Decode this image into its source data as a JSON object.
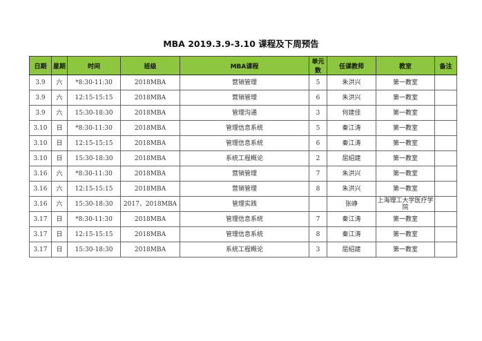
{
  "title": "MBA 2019.3.9-3.10 课程及下周预告",
  "header_color": "#8dc63f",
  "columns": [
    "日期",
    "星期",
    "时间",
    "班级",
    "MBA课程",
    "单元数",
    "任课教师",
    "教室",
    "备注"
  ],
  "rows": [
    [
      "3.9",
      "六",
      "*8:30-11:30",
      "2018MBA",
      "营销管理",
      "5",
      "朱洪兴",
      "第一教室",
      ""
    ],
    [
      "3.9",
      "六",
      "12:15-15:15",
      "2018MBA",
      "营销管理",
      "6",
      "朱洪兴",
      "第一教室",
      ""
    ],
    [
      "3.9",
      "六",
      "15:30-18:30",
      "2018MBA",
      "管理沟通",
      "3",
      "何建佳",
      "第一教室",
      ""
    ],
    [
      "3.10",
      "日",
      "*8:30-11:30",
      "2018MBA",
      "管理信息系统",
      "5",
      "秦江涛",
      "第一教室",
      ""
    ],
    [
      "3.10",
      "日",
      "12:15-15:15",
      "2018MBA",
      "管理信息系统",
      "6",
      "秦江涛",
      "第一教室",
      ""
    ],
    [
      "3.10",
      "日",
      "15:30-18:30",
      "2018MBA",
      "系统工程概论",
      "2",
      "屈绍建",
      "第一教室",
      ""
    ],
    [
      "3.16",
      "六",
      "*8:30-11:30",
      "2018MBA",
      "营销管理",
      "7",
      "朱洪兴",
      "第一教室",
      ""
    ],
    [
      "3.16",
      "六",
      "12:15-15:15",
      "2018MBA",
      "营销管理",
      "8",
      "朱洪兴",
      "第一教室",
      ""
    ],
    [
      "3.16",
      "六",
      "15:30-18:30",
      "2017、2018MBA",
      "管理实践",
      "",
      "张峥",
      "上海理工大学医疗学院",
      ""
    ],
    [
      "3.17",
      "日",
      "*8:30-11:30",
      "2018MBA",
      "管理信息系统",
      "7",
      "秦江涛",
      "第一教室",
      ""
    ],
    [
      "3.17",
      "日",
      "12:15-15:15",
      "2018MBA",
      "管理信息系统",
      "8",
      "秦江涛",
      "第一教室",
      ""
    ],
    [
      "3.17",
      "日",
      "15:30-18:30",
      "2018MBA",
      "系统工程概论",
      "3",
      "屈绍建",
      "第一教室",
      ""
    ]
  ]
}
